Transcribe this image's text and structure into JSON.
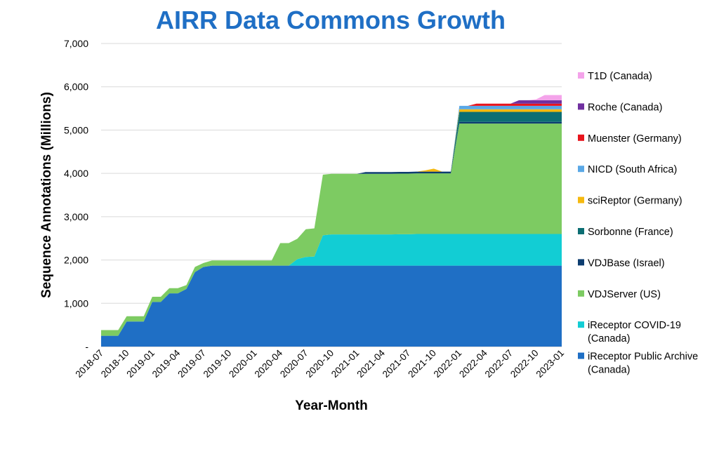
{
  "chart_data": {
    "type": "area",
    "stacked": true,
    "title": "AIRR Data Commons Growth",
    "xlabel": "Year-Month",
    "ylabel": "Sequence Annotations (Millions)",
    "ylim": [
      0,
      7000
    ],
    "yticks": [
      0,
      1000,
      2000,
      3000,
      4000,
      5000,
      6000,
      7000
    ],
    "ytick_labels": [
      "-",
      "1,000",
      "2,000",
      "3,000",
      "4,000",
      "5,000",
      "6,000",
      "7,000"
    ],
    "x": [
      "2018-07",
      "2018-08",
      "2018-09",
      "2018-10",
      "2018-11",
      "2018-12",
      "2019-01",
      "2019-02",
      "2019-03",
      "2019-04",
      "2019-05",
      "2019-06",
      "2019-07",
      "2019-08",
      "2019-09",
      "2019-10",
      "2019-11",
      "2019-12",
      "2020-01",
      "2020-02",
      "2020-03",
      "2020-04",
      "2020-05",
      "2020-06",
      "2020-07",
      "2020-08",
      "2020-09",
      "2020-10",
      "2020-11",
      "2020-12",
      "2021-01",
      "2021-02",
      "2021-03",
      "2021-04",
      "2021-05",
      "2021-06",
      "2021-07",
      "2021-08",
      "2021-09",
      "2021-10",
      "2021-11",
      "2021-12",
      "2022-01",
      "2022-02",
      "2022-03",
      "2022-04",
      "2022-05",
      "2022-06",
      "2022-07",
      "2022-08",
      "2022-09",
      "2022-10",
      "2022-11",
      "2022-12",
      "2023-01"
    ],
    "x_tick_labels": [
      "2018-07",
      "2018-10",
      "2019-01",
      "2019-04",
      "2019-07",
      "2019-10",
      "2020-01",
      "2020-04",
      "2020-07",
      "2020-10",
      "2021-01",
      "2021-04",
      "2021-07",
      "2021-10",
      "2022-01",
      "2022-04",
      "2022-07",
      "2022-10",
      "2023-01"
    ],
    "grid": "horizontal",
    "legend_position": "right",
    "series": [
      {
        "name": "iReceptor Public Archive (Canada)",
        "color": "#1f6fc5",
        "values": [
          250,
          250,
          250,
          580,
          580,
          580,
          1030,
          1030,
          1230,
          1230,
          1330,
          1720,
          1840,
          1870,
          1870,
          1870,
          1870,
          1870,
          1870,
          1870,
          1870,
          1870,
          1870,
          1870,
          1870,
          1870,
          1870,
          1870,
          1870,
          1870,
          1870,
          1870,
          1870,
          1870,
          1870,
          1870,
          1870,
          1870,
          1870,
          1870,
          1870,
          1870,
          1870,
          1870,
          1870,
          1870,
          1870,
          1870,
          1870,
          1870,
          1870,
          1870,
          1870,
          1870,
          1870
        ]
      },
      {
        "name": "iReceptor COVID-19 (Canada)",
        "color": "#12cdd4",
        "values": [
          0,
          0,
          0,
          0,
          0,
          0,
          0,
          0,
          0,
          0,
          0,
          0,
          0,
          0,
          0,
          0,
          0,
          0,
          0,
          0,
          0,
          0,
          0,
          150,
          200,
          210,
          700,
          720,
          720,
          720,
          720,
          720,
          720,
          720,
          720,
          725,
          725,
          730,
          730,
          730,
          730,
          730,
          730,
          730,
          730,
          730,
          730,
          730,
          730,
          730,
          730,
          730,
          730,
          730,
          730
        ]
      },
      {
        "name": "VDJServer (US)",
        "color": "#7dcb62",
        "values": [
          130,
          130,
          130,
          120,
          120,
          120,
          120,
          120,
          120,
          120,
          90,
          120,
          90,
          120,
          120,
          120,
          120,
          120,
          120,
          120,
          120,
          520,
          520,
          470,
          640,
          650,
          1400,
          1400,
          1400,
          1400,
          1400,
          1400,
          1400,
          1400,
          1400,
          1400,
          1400,
          1400,
          1400,
          1400,
          1400,
          1400,
          2550,
          2550,
          2550,
          2550,
          2550,
          2550,
          2550,
          2550,
          2550,
          2550,
          2550,
          2550,
          2550
        ]
      },
      {
        "name": "VDJBase (Israel)",
        "color": "#0d3d70",
        "values": [
          0,
          0,
          0,
          0,
          0,
          0,
          0,
          0,
          0,
          0,
          0,
          0,
          0,
          0,
          0,
          0,
          0,
          0,
          0,
          0,
          0,
          0,
          0,
          0,
          0,
          0,
          0,
          0,
          0,
          0,
          0,
          40,
          40,
          40,
          40,
          40,
          40,
          40,
          40,
          40,
          40,
          40,
          40,
          40,
          40,
          40,
          40,
          40,
          40,
          40,
          40,
          40,
          40,
          40,
          40
        ]
      },
      {
        "name": "Sorbonne (France)",
        "color": "#0c6e73",
        "values": [
          0,
          0,
          0,
          0,
          0,
          0,
          0,
          0,
          0,
          0,
          0,
          0,
          0,
          0,
          0,
          0,
          0,
          0,
          0,
          0,
          0,
          0,
          0,
          0,
          0,
          0,
          0,
          0,
          0,
          0,
          0,
          0,
          0,
          0,
          0,
          0,
          0,
          0,
          0,
          0,
          0,
          0,
          230,
          230,
          230,
          230,
          230,
          230,
          230,
          230,
          230,
          230,
          230,
          230,
          230
        ]
      },
      {
        "name": "sciReptor (Germany)",
        "color": "#f5b90f",
        "values": [
          0,
          0,
          0,
          0,
          0,
          0,
          0,
          0,
          0,
          0,
          0,
          0,
          0,
          0,
          0,
          0,
          0,
          0,
          0,
          0,
          0,
          0,
          0,
          0,
          0,
          0,
          0,
          0,
          0,
          0,
          0,
          0,
          0,
          0,
          0,
          0,
          0,
          0,
          30,
          70,
          0,
          0,
          60,
          60,
          60,
          60,
          60,
          60,
          60,
          60,
          60,
          60,
          60,
          60,
          60
        ]
      },
      {
        "name": "NICD (South Africa)",
        "color": "#5aa8e6",
        "values": [
          0,
          0,
          0,
          0,
          0,
          0,
          0,
          0,
          0,
          0,
          0,
          0,
          0,
          0,
          0,
          0,
          0,
          0,
          0,
          0,
          0,
          0,
          0,
          0,
          0,
          0,
          0,
          0,
          0,
          0,
          0,
          0,
          0,
          0,
          0,
          0,
          0,
          0,
          0,
          0,
          0,
          0,
          80,
          80,
          80,
          80,
          80,
          80,
          80,
          80,
          80,
          80,
          80,
          80,
          80
        ]
      },
      {
        "name": "Muenster (Germany)",
        "color": "#e8141c",
        "values": [
          0,
          0,
          0,
          0,
          0,
          0,
          0,
          0,
          0,
          0,
          0,
          0,
          0,
          0,
          0,
          0,
          0,
          0,
          0,
          0,
          0,
          0,
          0,
          0,
          0,
          0,
          0,
          0,
          0,
          0,
          0,
          0,
          0,
          0,
          0,
          0,
          0,
          0,
          0,
          0,
          0,
          0,
          0,
          0,
          50,
          50,
          50,
          50,
          50,
          50,
          50,
          50,
          50,
          50,
          50
        ]
      },
      {
        "name": "Roche (Canada)",
        "color": "#7030a0",
        "values": [
          0,
          0,
          0,
          0,
          0,
          0,
          0,
          0,
          0,
          0,
          0,
          0,
          0,
          0,
          0,
          0,
          0,
          0,
          0,
          0,
          0,
          0,
          0,
          0,
          0,
          0,
          0,
          0,
          0,
          0,
          0,
          0,
          0,
          0,
          0,
          0,
          0,
          0,
          0,
          0,
          0,
          0,
          0,
          0,
          0,
          0,
          0,
          0,
          0,
          80,
          80,
          80,
          80,
          80,
          80
        ]
      },
      {
        "name": "T1D (Canada)",
        "color": "#f4a3ea",
        "values": [
          0,
          0,
          0,
          0,
          0,
          0,
          0,
          0,
          0,
          0,
          0,
          0,
          0,
          0,
          0,
          0,
          0,
          0,
          0,
          0,
          0,
          0,
          0,
          0,
          0,
          0,
          0,
          0,
          0,
          0,
          0,
          0,
          0,
          0,
          0,
          0,
          0,
          0,
          0,
          0,
          0,
          0,
          0,
          0,
          0,
          0,
          0,
          0,
          0,
          0,
          0,
          20,
          120,
          120,
          120
        ]
      }
    ]
  }
}
